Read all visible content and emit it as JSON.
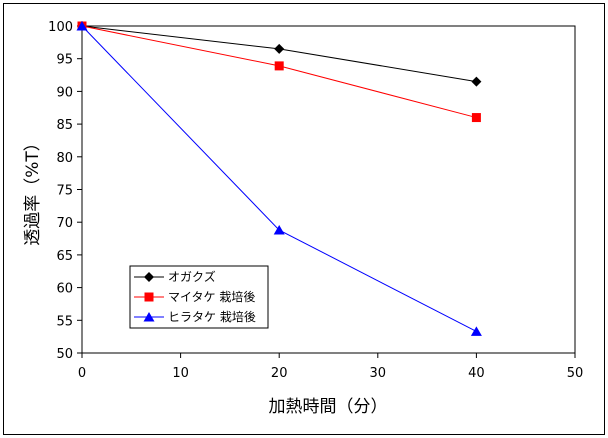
{
  "chart_data": {
    "type": "line",
    "xlabel": "加熱時間（分）",
    "ylabel": "透過率（%T）",
    "xlim": [
      0,
      50
    ],
    "ylim": [
      50,
      100
    ],
    "x_ticks": [
      0,
      10,
      20,
      30,
      40,
      50
    ],
    "y_ticks": [
      50,
      55,
      60,
      65,
      70,
      75,
      80,
      85,
      90,
      95,
      100
    ],
    "grid": false,
    "legend_position": "bottom-left",
    "series": [
      {
        "name": "オガクズ",
        "color": "#000000",
        "marker": "diamond",
        "x": [
          0,
          20,
          40
        ],
        "y": [
          100,
          96.5,
          91.5
        ]
      },
      {
        "name": "マイタケ 栽培後",
        "color": "#ff0000",
        "marker": "square",
        "x": [
          0,
          20,
          40
        ],
        "y": [
          100,
          93.9,
          86
        ]
      },
      {
        "name": "ヒラタケ 栽培後",
        "color": "#0000ff",
        "marker": "triangle",
        "x": [
          0,
          20,
          40
        ],
        "y": [
          100,
          68.8,
          53.3
        ]
      }
    ]
  }
}
